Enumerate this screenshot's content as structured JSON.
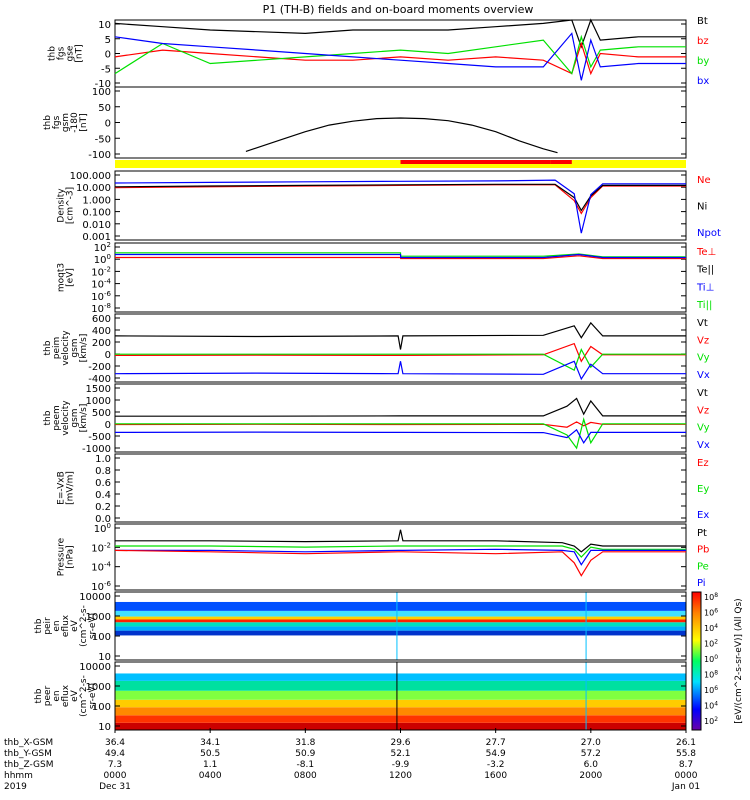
{
  "title": "P1 (TH-B) fields and on-board moments overview",
  "colors": {
    "black": "#000000",
    "red": "#ff0000",
    "green": "#00e000",
    "blue": "#0000ff",
    "yellow": "#ffff00",
    "grey": "#bfbfbf"
  },
  "chart_data": [
    {
      "id": "fgs_gse",
      "type": "line",
      "ylabel_lines": [
        "thb",
        "fgs",
        "gse",
        "[nT]"
      ],
      "ylim": [
        -10,
        10
      ],
      "yticks": [
        "10",
        "5",
        "0",
        "-5",
        "-10"
      ],
      "x_hours": [
        0,
        2,
        4,
        6,
        8,
        10,
        12,
        14,
        16,
        18,
        19.2,
        19.6,
        20,
        20.4,
        22,
        24
      ],
      "series": [
        {
          "name": "Bt",
          "color": "#000000",
          "values": [
            9,
            8,
            7,
            6.5,
            6,
            7,
            7,
            7,
            8,
            9,
            10,
            2,
            10,
            4,
            5,
            5
          ]
        },
        {
          "name": "bz",
          "color": "#ff0000",
          "values": [
            -1,
            1,
            0,
            -1,
            -2,
            -2,
            -1,
            -2,
            -1,
            -2,
            -6,
            3,
            -6,
            0,
            -1,
            -1
          ]
        },
        {
          "name": "by",
          "color": "#00e000",
          "values": [
            -6,
            3,
            -3,
            -2,
            -1,
            0,
            1,
            0,
            2,
            4,
            -6,
            5,
            -4,
            1,
            2,
            2
          ]
        },
        {
          "name": "bx",
          "color": "#0000ff",
          "values": [
            5,
            3,
            2,
            1,
            0,
            -1,
            -2,
            -3,
            -4,
            -4,
            6,
            -8,
            4,
            -4,
            -3,
            -3
          ]
        }
      ]
    },
    {
      "id": "fgs_gsm_clock",
      "type": "line",
      "ylabel_lines": [
        "thb",
        "fgs",
        "gsm",
        "-180",
        "[nT]"
      ],
      "ylim": [
        -150,
        120
      ],
      "yticks": [
        "100",
        "50",
        "0",
        "-50",
        "-100"
      ],
      "x_hours": [
        5.5,
        7,
        8,
        9,
        10,
        11,
        12,
        13,
        14,
        15,
        16,
        17,
        18,
        18.6
      ],
      "series": [
        {
          "name": "",
          "color": "#000000",
          "values": [
            -125,
            -80,
            -50,
            -25,
            -10,
            0,
            2,
            0,
            -8,
            -25,
            -50,
            -85,
            -115,
            -130
          ]
        }
      ]
    },
    {
      "id": "mode_bar",
      "type": "bar",
      "segments": [
        {
          "from_hour": 0,
          "to_hour": 24,
          "color": "#ffff00"
        },
        {
          "from_hour": 12.0,
          "to_hour": 18.3,
          "color": "#ff0000"
        },
        {
          "from_hour": 18.3,
          "to_hour": 19.2,
          "color": "#ff0000"
        }
      ]
    },
    {
      "id": "density",
      "type": "line",
      "ylabel_lines": [
        "Density",
        "[cm^-3]"
      ],
      "scale": "log",
      "ylim": [
        0.0001,
        1000
      ],
      "yticks": [
        "100.000",
        "10.000",
        "1.000",
        "0.100",
        "0.010",
        "0.001"
      ],
      "legend": [
        "Ne",
        "Ni",
        "Npot"
      ],
      "legend_colors": [
        "#ff0000",
        "#000000",
        "#0000ff"
      ],
      "x_hours": [
        0,
        4,
        8,
        12,
        16,
        18.5,
        19.3,
        19.6,
        20,
        20.5,
        24
      ],
      "series": [
        {
          "name": "Ne",
          "color": "#ff0000",
          "values": [
            20,
            25,
            30,
            35,
            40,
            40,
            1,
            0.05,
            2,
            30,
            30
          ]
        },
        {
          "name": "Ni",
          "color": "#000000",
          "values": [
            25,
            30,
            35,
            40,
            45,
            45,
            2,
            0.1,
            3,
            35,
            35
          ]
        },
        {
          "name": "Npot",
          "color": "#0000ff",
          "values": [
            60,
            70,
            80,
            90,
            100,
            120,
            5,
            0.0005,
            4,
            50,
            50
          ]
        }
      ]
    },
    {
      "id": "temperature",
      "type": "line",
      "ylabel_lines": [
        "moqt3",
        "[eV]"
      ],
      "scale": "log",
      "ylim": [
        1e-08,
        10000.0
      ],
      "yticks": [
        "10^2",
        "10^0",
        "10^-2",
        "10^-4",
        "10^-6",
        "10^-8"
      ],
      "legend": [
        "Te⊥",
        "Te||",
        "Ti⊥",
        "Ti||"
      ],
      "legend_colors": [
        "#ff0000",
        "#000000",
        "#0000ff",
        "#00e000"
      ],
      "x_hours": [
        0,
        6,
        12,
        12.01,
        18,
        19.5,
        20.5,
        24
      ],
      "series": [
        {
          "name": "Te⊥",
          "color": "#ff0000",
          "values": [
            30,
            30,
            30,
            20,
            20,
            60,
            20,
            20
          ]
        },
        {
          "name": "Ti||",
          "color": "#00e000",
          "values": [
            200,
            200,
            200,
            50,
            50,
            120,
            40,
            40
          ]
        },
        {
          "name": "Ti⊥",
          "color": "#0000ff",
          "values": [
            100,
            100,
            100,
            30,
            30,
            100,
            30,
            30
          ]
        }
      ]
    },
    {
      "id": "peim_velocity",
      "type": "line",
      "ylabel_lines": [
        "thb",
        "peim",
        "velocity",
        "gsm",
        "[km/s]"
      ],
      "ylim": [
        -450,
        700
      ],
      "yticks": [
        "600",
        "400",
        "200",
        "0",
        "-200",
        "-400"
      ],
      "legend": [
        "Vt",
        "Vz",
        "Vy",
        "Vx"
      ],
      "legend_colors": [
        "#000000",
        "#ff0000",
        "#00e000",
        "#0000ff"
      ],
      "x_hours": [
        0,
        6,
        11.9,
        12,
        12.1,
        18,
        19.3,
        19.6,
        20,
        20.5,
        24
      ],
      "series": [
        {
          "name": "Vt",
          "color": "#000000",
          "values": [
            330,
            320,
            330,
            100,
            330,
            340,
            500,
            300,
            550,
            330,
            330
          ]
        },
        {
          "name": "Vz",
          "color": "#ff0000",
          "values": [
            0,
            5,
            0,
            0,
            0,
            10,
            200,
            -100,
            150,
            10,
            10
          ]
        },
        {
          "name": "Vy",
          "color": "#00e000",
          "values": [
            20,
            20,
            20,
            20,
            20,
            20,
            -250,
            100,
            -200,
            20,
            20
          ]
        },
        {
          "name": "Vx",
          "color": "#0000ff",
          "values": [
            -310,
            -300,
            -310,
            -100,
            -310,
            -320,
            -100,
            -400,
            -150,
            -310,
            -310
          ]
        }
      ]
    },
    {
      "id": "peem_velocity",
      "type": "line",
      "ylabel_lines": [
        "thb",
        "peem",
        "velocity",
        "gsm",
        "[km/s]"
      ],
      "ylim": [
        -1050,
        1550
      ],
      "yticks": [
        "1500",
        "1000",
        "500",
        "0",
        "-500",
        "-1000"
      ],
      "legend": [
        "Vt",
        "Vz",
        "Vy",
        "Vx"
      ],
      "legend_colors": [
        "#000000",
        "#ff0000",
        "#00e000",
        "#0000ff"
      ],
      "x_hours": [
        0,
        6,
        12,
        18,
        19,
        19.4,
        19.7,
        20,
        20.5,
        24
      ],
      "series": [
        {
          "name": "Vt",
          "color": "#000000",
          "values": [
            320,
            320,
            330,
            330,
            700,
            1000,
            400,
            900,
            330,
            330
          ]
        },
        {
          "name": "Vz",
          "color": "#ff0000",
          "values": [
            0,
            10,
            0,
            10,
            -100,
            100,
            -50,
            80,
            10,
            10
          ]
        },
        {
          "name": "Vy",
          "color": "#00e000",
          "values": [
            30,
            30,
            30,
            30,
            -400,
            -900,
            200,
            -700,
            30,
            30
          ]
        },
        {
          "name": "Vx",
          "color": "#0000ff",
          "values": [
            -300,
            -290,
            -300,
            -310,
            -500,
            -200,
            -700,
            -300,
            -300,
            -300
          ]
        }
      ]
    },
    {
      "id": "efield",
      "type": "line",
      "ylabel_lines": [
        "E=-VxB",
        "[mV/m]"
      ],
      "ylim": [
        0,
        1.0
      ],
      "yticks": [
        "1.0",
        "0.8",
        "0.6",
        "0.4",
        "0.2",
        "0.0"
      ],
      "legend": [
        "Ez",
        "Ey",
        "Ex"
      ],
      "legend_colors": [
        "#ff0000",
        "#00e000",
        "#0000ff"
      ],
      "series": []
    },
    {
      "id": "pressure",
      "type": "line",
      "ylabel_lines": [
        "Pressure",
        "[nPa]"
      ],
      "scale": "log",
      "ylim": [
        1e-06,
        1
      ],
      "yticks": [
        "10^0",
        "10^-2",
        "10^-4",
        "10^-6"
      ],
      "legend": [
        "Pt",
        "Pb",
        "Pe",
        "Pi"
      ],
      "legend_colors": [
        "#000000",
        "#ff0000",
        "#00e000",
        "#0000ff"
      ],
      "x_hours": [
        0,
        4,
        8,
        11.9,
        12,
        12.1,
        16,
        18.8,
        19.3,
        19.6,
        20,
        20.5,
        24
      ],
      "series": [
        {
          "name": "Pt",
          "color": "#000000",
          "values": [
            0.03,
            0.03,
            0.025,
            0.03,
            0.3,
            0.03,
            0.03,
            0.02,
            0.01,
            0.003,
            0.015,
            0.01,
            0.01
          ]
        },
        {
          "name": "Pe",
          "color": "#00e000",
          "values": [
            0.01,
            0.01,
            0.008,
            0.01,
            0.01,
            0.01,
            0.01,
            0.01,
            0.005,
            0.001,
            0.008,
            0.005,
            0.005
          ]
        },
        {
          "name": "Pi",
          "color": "#0000ff",
          "values": [
            0.004,
            0.004,
            0.003,
            0.004,
            0.004,
            0.004,
            0.005,
            0.004,
            0.003,
            0.0002,
            0.004,
            0.004,
            0.004
          ]
        },
        {
          "name": "Pb",
          "color": "#ff0000",
          "values": [
            0.004,
            0.003,
            0.002,
            0.003,
            0.003,
            0.003,
            0.002,
            0.003,
            0.0003,
            2e-05,
            0.0005,
            0.003,
            0.003
          ]
        }
      ]
    },
    {
      "id": "peir_spectrogram",
      "type": "heatmap",
      "ylabel_lines": [
        "thb",
        "peir",
        "en",
        "eflux",
        "eV",
        "(cm^2-s-",
        "sr-eV)"
      ],
      "scale": "log",
      "ylim": [
        5,
        20000
      ],
      "yticks": [
        "10000",
        "1000",
        "100",
        "10"
      ]
    },
    {
      "id": "peer_spectrogram",
      "type": "heatmap",
      "ylabel_lines": [
        "thb",
        "peer",
        "en",
        "eflux",
        "eV",
        "(cm^2-s-",
        "sr-eV)"
      ],
      "scale": "log",
      "ylim": [
        5,
        20000
      ],
      "yticks": [
        "10000",
        "1000",
        "100",
        "10"
      ]
    }
  ],
  "colorbar": {
    "label": "[eV/(cm^2-s-sr-eV)] (All Qs)",
    "ticks_top": [
      "10^8",
      "10^6",
      "10^4",
      "10^2",
      "10^0"
    ],
    "ticks_bottom": [
      "10^8",
      "10^6",
      "10^4",
      "10^2"
    ]
  },
  "x_axis": {
    "row_labels": [
      "thb_X-GSM",
      "thb_Y-GSM",
      "thb_Z-GSM",
      "hhmm",
      "2019"
    ],
    "columns": [
      {
        "x": "36.4",
        "y": "49.4",
        "z": "7.3",
        "time": "0000",
        "date": "Dec 31"
      },
      {
        "x": "34.1",
        "y": "50.5",
        "z": "1.1",
        "time": "0400",
        "date": ""
      },
      {
        "x": "31.8",
        "y": "50.9",
        "z": "-8.1",
        "time": "0800",
        "date": ""
      },
      {
        "x": "29.6",
        "y": "52.1",
        "z": "-9.9",
        "time": "1200",
        "date": ""
      },
      {
        "x": "27.7",
        "y": "54.9",
        "z": "-3.2",
        "time": "1600",
        "date": ""
      },
      {
        "x": "27.0",
        "y": "57.2",
        "z": "6.0",
        "time": "2000",
        "date": ""
      },
      {
        "x": "26.1",
        "y": "55.8",
        "z": "8.7",
        "time": "0000",
        "date": "Jan 01"
      }
    ]
  },
  "top_legend": {
    "labels": [
      "Bt",
      "bz",
      "by",
      "bx"
    ],
    "colors": [
      "#000000",
      "#ff0000",
      "#00e000",
      "#0000ff"
    ]
  }
}
